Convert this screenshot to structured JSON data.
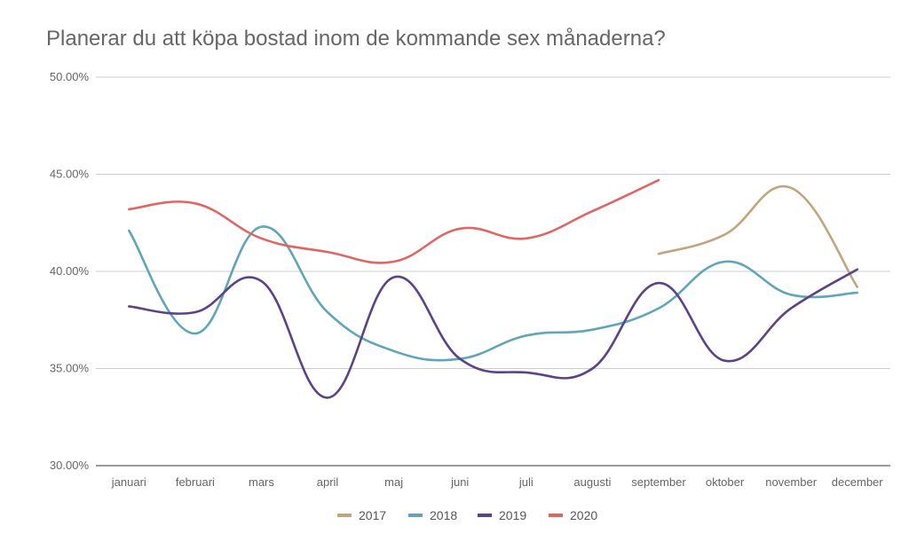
{
  "chart_data": {
    "type": "line",
    "title": "Planerar du att köpa bostad inom de kommande sex månaderna?",
    "xlabel": "",
    "ylabel": "",
    "ylim": [
      30,
      50
    ],
    "yticks": [
      "30.00%",
      "35.00%",
      "40.00%",
      "45.00%",
      "50.00%"
    ],
    "ytick_values": [
      30,
      35,
      40,
      45,
      50
    ],
    "categories": [
      "januari",
      "februari",
      "mars",
      "april",
      "maj",
      "juni",
      "juli",
      "augusti",
      "september",
      "oktober",
      "november",
      "december"
    ],
    "grid": true,
    "legend_position": "bottom",
    "series": [
      {
        "name": "2017",
        "color": "#c2a57e",
        "values": [
          null,
          null,
          null,
          null,
          null,
          null,
          null,
          null,
          40.9,
          41.9,
          44.3,
          39.2
        ]
      },
      {
        "name": "2018",
        "color": "#5ea6b8",
        "values": [
          42.1,
          36.8,
          42.3,
          37.9,
          35.9,
          35.5,
          36.7,
          37.0,
          38.1,
          40.5,
          38.8,
          38.9
        ]
      },
      {
        "name": "2019",
        "color": "#5b4388",
        "values": [
          38.2,
          37.9,
          39.5,
          33.5,
          39.7,
          35.5,
          34.8,
          35.0,
          39.4,
          35.4,
          38.1,
          40.1
        ]
      },
      {
        "name": "2020",
        "color": "#e06666",
        "values": [
          43.2,
          43.5,
          41.7,
          41.0,
          40.5,
          42.2,
          41.7,
          43.1,
          44.7,
          null,
          null,
          null
        ]
      }
    ]
  }
}
